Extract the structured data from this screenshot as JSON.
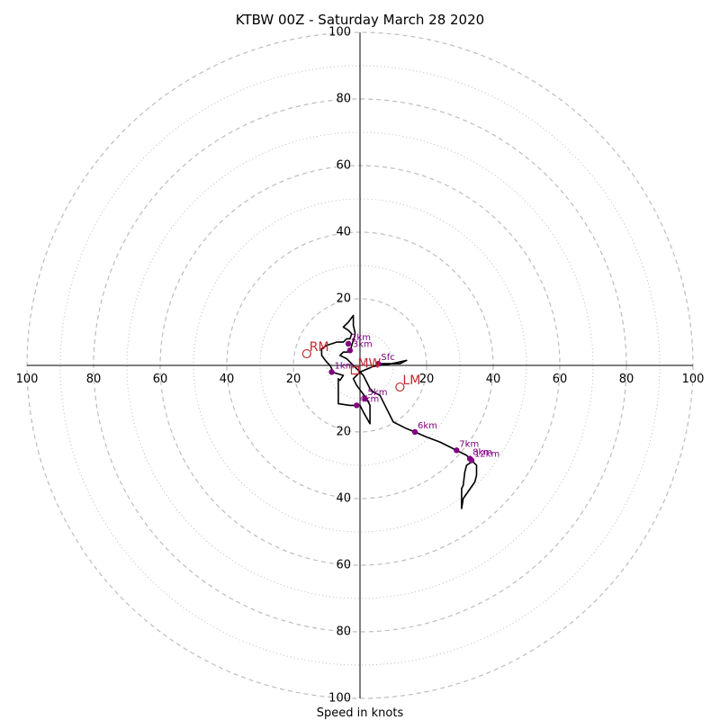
{
  "chart_data": {
    "type": "hodograph",
    "title": "KTBW 00Z - Saturday March 28 2020",
    "xlabel": "Speed in knots",
    "range": 100,
    "dashed_rings": [
      20,
      40,
      60,
      80,
      100
    ],
    "dotted_rings": [
      10,
      30,
      50,
      70,
      90
    ],
    "ticks": {
      "right": [
        "20",
        "40",
        "60",
        "80",
        "100"
      ],
      "left": [
        "100",
        "80",
        "60",
        "40",
        "20"
      ],
      "top": [
        "100",
        "80",
        "60",
        "40",
        "20"
      ],
      "bottom": [
        "20",
        "40",
        "60",
        "80",
        "100"
      ]
    },
    "colors": {
      "trace": "#000000",
      "levels": "#800080",
      "motion": "#c0282d",
      "rings": "#bdbdbd",
      "axes": "#000000"
    },
    "trace": [
      [
        5.5,
        0.5
      ],
      [
        12,
        0.5
      ],
      [
        14,
        1.5
      ],
      [
        9.5,
        0.5
      ],
      [
        4,
        -0.3
      ],
      [
        0,
        -2
      ],
      [
        -2,
        -4
      ],
      [
        -1,
        -6
      ],
      [
        2,
        -10
      ],
      [
        3,
        -12
      ],
      [
        3,
        -14
      ],
      [
        3,
        -17.5
      ],
      [
        1,
        -14
      ],
      [
        0,
        -12
      ],
      [
        -3,
        -12
      ],
      [
        -6.5,
        -11.5
      ],
      [
        -6.5,
        -8
      ],
      [
        -6.5,
        -6
      ],
      [
        -6.5,
        -4
      ],
      [
        -6,
        -4.5
      ],
      [
        -5,
        -3
      ],
      [
        -8.5,
        -2
      ],
      [
        -8.5,
        -1
      ],
      [
        -9,
        0
      ],
      [
        -10,
        1
      ],
      [
        -11.5,
        3
      ],
      [
        -11.5,
        5
      ],
      [
        -10,
        6
      ],
      [
        -7,
        7
      ],
      [
        -5,
        7
      ],
      [
        -4,
        8
      ],
      [
        -3,
        8
      ],
      [
        -2.5,
        9.5
      ],
      [
        -3.5,
        10.5
      ],
      [
        -5,
        11.5
      ],
      [
        -3.5,
        13
      ],
      [
        -2,
        15
      ],
      [
        -2,
        12
      ],
      [
        -1.5,
        10
      ],
      [
        -1.5,
        9
      ],
      [
        -2.5,
        6
      ],
      [
        -3,
        4
      ],
      [
        -5,
        4
      ],
      [
        -6,
        3
      ],
      [
        -4,
        2
      ],
      [
        -2,
        0
      ],
      [
        -1,
        -1
      ],
      [
        1,
        -3
      ],
      [
        2,
        -5
      ],
      [
        3,
        -7
      ],
      [
        4,
        -8
      ],
      [
        6,
        -9
      ],
      [
        7,
        -11
      ],
      [
        8,
        -13
      ],
      [
        10,
        -17
      ],
      [
        14,
        -19
      ],
      [
        16.5,
        -20
      ],
      [
        20,
        -21.5
      ],
      [
        24,
        -23
      ],
      [
        29,
        -25.5
      ],
      [
        32,
        -27
      ],
      [
        33.5,
        -28.5
      ],
      [
        35,
        -30
      ],
      [
        35,
        -33
      ],
      [
        34.5,
        -35
      ],
      [
        31,
        -40
      ],
      [
        30.5,
        -43
      ],
      [
        30.5,
        -37
      ],
      [
        31,
        -36
      ],
      [
        31.5,
        -32
      ],
      [
        32,
        -30
      ],
      [
        33.5,
        -29
      ],
      [
        33.5,
        -28.5
      ]
    ],
    "levels": [
      {
        "label": "Sfc",
        "u": 5.5,
        "v": 0.5
      },
      {
        "label": "1km",
        "u": -8.5,
        "v": -2
      },
      {
        "label": "2km",
        "u": -3.5,
        "v": 6.5
      },
      {
        "label": "3km",
        "u": -3,
        "v": 4.5
      },
      {
        "label": "4km",
        "u": -1,
        "v": -12
      },
      {
        "label": "5km",
        "u": 1.5,
        "v": -10
      },
      {
        "label": "6km",
        "u": 16.5,
        "v": -20
      },
      {
        "label": "7km",
        "u": 29,
        "v": -25.5
      },
      {
        "label": "8km",
        "u": 33,
        "v": -28
      },
      {
        "label": "12km",
        "u": 33.5,
        "v": -28.5
      }
    ],
    "storm_motion": [
      {
        "label": "RM",
        "u": -16,
        "v": 3.5,
        "marker": "circle"
      },
      {
        "label": "LM",
        "u": 12,
        "v": -6.5,
        "marker": "circle"
      },
      {
        "label": "MW",
        "u": -1.5,
        "v": -1.5,
        "marker": "square"
      }
    ]
  }
}
